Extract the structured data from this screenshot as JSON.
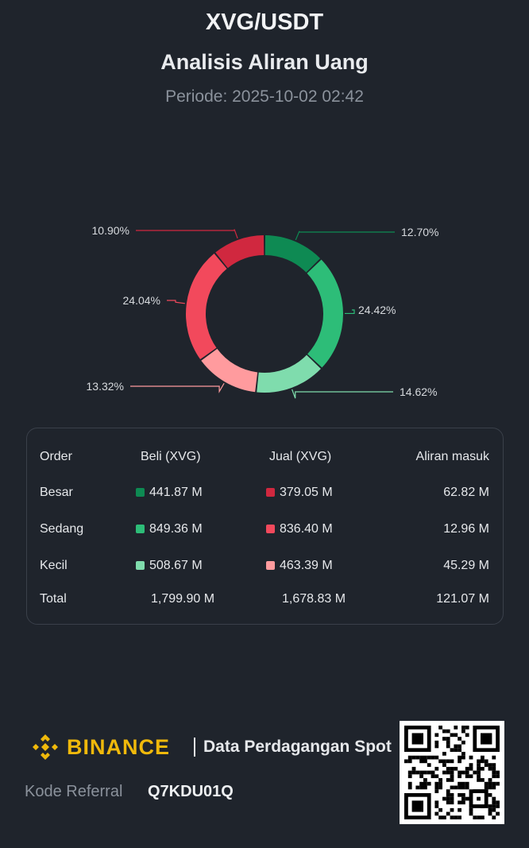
{
  "header": {
    "pair": "XVG/USDT",
    "title": "Analisis Aliran Uang",
    "period": "Periode: 2025-10-02 02:42"
  },
  "chart_data": {
    "type": "pie",
    "variant": "donut",
    "slices": [
      {
        "label": "12.70%",
        "value": 12.7,
        "color": "#0e8a53"
      },
      {
        "label": "24.42%",
        "value": 24.42,
        "color": "#2dbd78"
      },
      {
        "label": "14.62%",
        "value": 14.62,
        "color": "#7fdcad"
      },
      {
        "label": "13.32%",
        "value": 13.32,
        "color": "#ff9b9e"
      },
      {
        "label": "24.04%",
        "value": 24.04,
        "color": "#f2495c"
      },
      {
        "label": "10.90%",
        "value": 10.9,
        "color": "#d0283f"
      }
    ]
  },
  "table": {
    "headers": {
      "order": "Order",
      "buy": "Beli (XVG)",
      "sell": "Jual (XVG)",
      "flow": "Aliran masuk"
    },
    "rows": [
      {
        "label": "Besar",
        "buy": "441.87 M",
        "sell": "379.05 M",
        "flow": "62.82 M",
        "buy_color": "#0e8a53",
        "sell_color": "#d0283f"
      },
      {
        "label": "Sedang",
        "buy": "849.36 M",
        "sell": "836.40 M",
        "flow": "12.96 M",
        "buy_color": "#2dbd78",
        "sell_color": "#f2495c"
      },
      {
        "label": "Kecil",
        "buy": "508.67 M",
        "sell": "463.39 M",
        "flow": "45.29 M",
        "buy_color": "#7fdcad",
        "sell_color": "#ff9b9e"
      }
    ],
    "total": {
      "label": "Total",
      "buy": "1,799.90 M",
      "sell": "1,678.83 M",
      "flow": "121.07 M"
    }
  },
  "footer": {
    "brand": "BINANCE",
    "tagline": "Data Perdagangan Spot",
    "referral_label": "Kode Referral",
    "referral_code": "Q7KDU01Q",
    "logo_icon": "binance-logo-icon",
    "qr_icon": "qr-code-icon"
  }
}
